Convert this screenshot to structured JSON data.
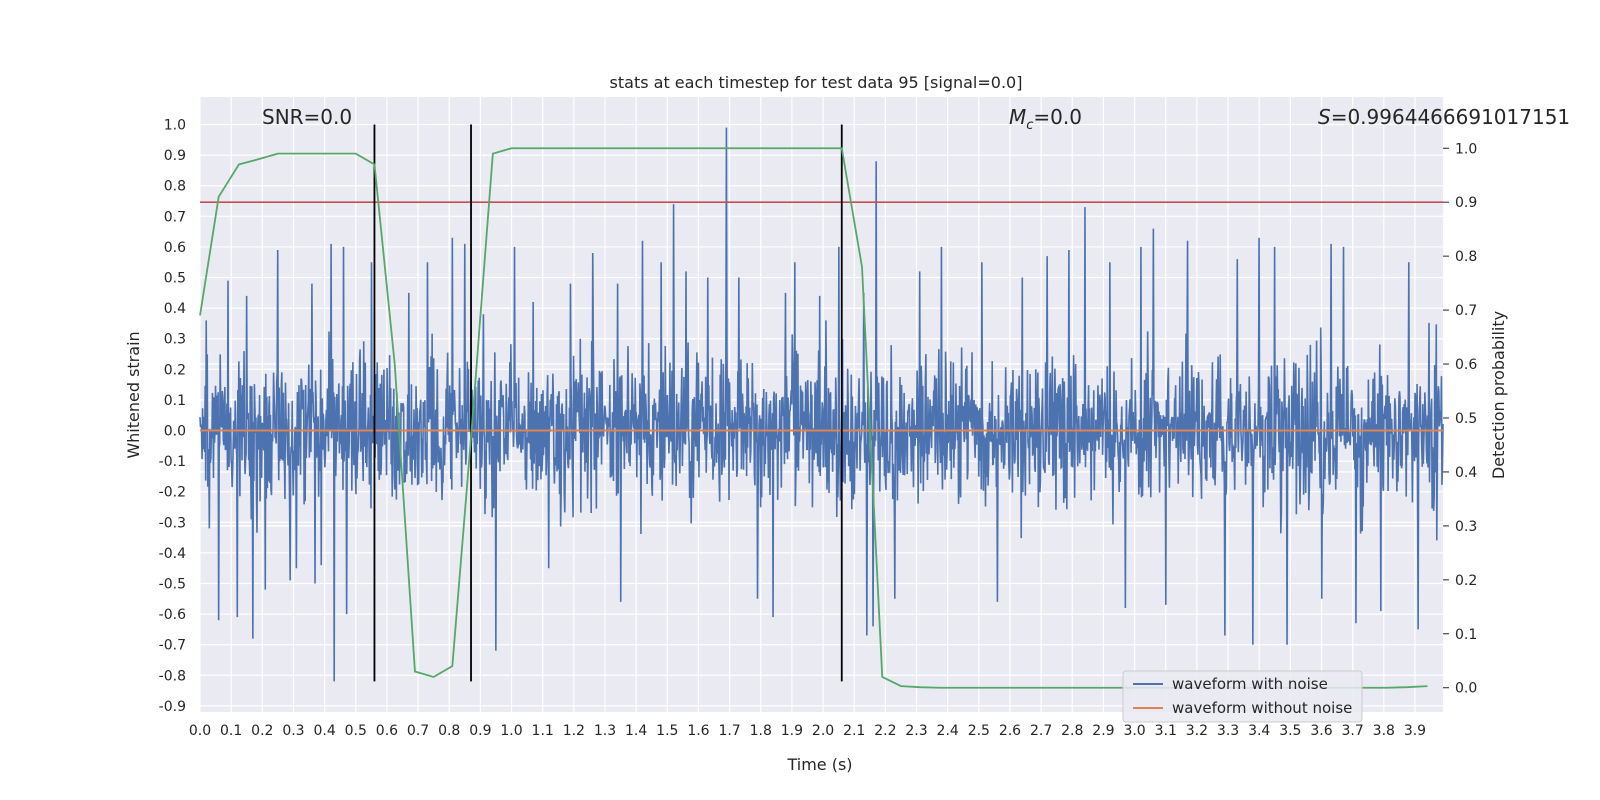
{
  "chart_data": {
    "type": "line",
    "title": "stats at each timestep for test data 95 [signal=0.0]",
    "xlabel": "Time (s)",
    "ylabel": "Whitened strain",
    "y2label": "Detection probability",
    "xlim": [
      0.0,
      3.99
    ],
    "ylim": [
      -0.92,
      1.09
    ],
    "y2lim": [
      -0.045,
      1.095
    ],
    "x_ticks": [
      "0.0",
      "0.1",
      "0.2",
      "0.3",
      "0.4",
      "0.5",
      "0.6",
      "0.7",
      "0.8",
      "0.9",
      "1.0",
      "1.1",
      "1.2",
      "1.3",
      "1.4",
      "1.5",
      "1.6",
      "1.7",
      "1.8",
      "1.9",
      "2.0",
      "2.1",
      "2.2",
      "2.3",
      "2.4",
      "2.5",
      "2.6",
      "2.7",
      "2.8",
      "2.9",
      "3.0",
      "3.1",
      "3.2",
      "3.3",
      "3.4",
      "3.5",
      "3.6",
      "3.7",
      "3.8",
      "3.9"
    ],
    "y_ticks": [
      "1.0",
      "0.9",
      "0.8",
      "0.7",
      "0.6",
      "0.5",
      "0.4",
      "0.3",
      "0.2",
      "0.1",
      "0.0",
      "-0.1",
      "-0.2",
      "-0.3",
      "-0.4",
      "-0.5",
      "-0.6",
      "-0.7",
      "-0.8",
      "-0.9"
    ],
    "y2_ticks": [
      "1.0",
      "0.9",
      "0.8",
      "0.7",
      "0.6",
      "0.5",
      "0.4",
      "0.3",
      "0.2",
      "0.1",
      "0.0"
    ],
    "grid": true,
    "legend_position": "bottom-right",
    "annotations": {
      "snr": "SNR=0.0",
      "mc_symbol": "M",
      "mc_sub": "c",
      "mc_value": "=0.0",
      "s_symbol": "S",
      "s_value": "=0.9964466691017151"
    },
    "series": [
      {
        "name": "waveform with noise",
        "color": "#4c72b0",
        "noise_amplitude": 0.3,
        "peaks": [
          [
            0.02,
            0.36
          ],
          [
            0.03,
            -0.32
          ],
          [
            0.06,
            -0.62
          ],
          [
            0.09,
            0.49
          ],
          [
            0.12,
            -0.61
          ],
          [
            0.15,
            0.44
          ],
          [
            0.17,
            -0.68
          ],
          [
            0.21,
            0.55
          ],
          [
            0.21,
            -0.52
          ],
          [
            0.25,
            0.59
          ],
          [
            0.29,
            0.57
          ],
          [
            0.29,
            -0.49
          ],
          [
            0.31,
            -0.45
          ],
          [
            0.36,
            0.48
          ],
          [
            0.37,
            -0.5
          ],
          [
            0.39,
            -0.44
          ],
          [
            0.42,
            0.61
          ],
          [
            0.43,
            -0.82
          ],
          [
            0.46,
            0.6
          ],
          [
            0.47,
            -0.6
          ],
          [
            0.55,
            0.55
          ],
          [
            0.67,
            0.45
          ],
          [
            0.73,
            0.55
          ],
          [
            0.81,
            0.63
          ],
          [
            0.85,
            0.61
          ],
          [
            0.91,
            0.38
          ],
          [
            0.95,
            -0.72
          ],
          [
            1.01,
            0.6
          ],
          [
            1.07,
            0.42
          ],
          [
            1.12,
            -0.45
          ],
          [
            1.19,
            0.48
          ],
          [
            1.26,
            0.58
          ],
          [
            1.34,
            0.48
          ],
          [
            1.35,
            -0.56
          ],
          [
            1.42,
            0.62
          ],
          [
            1.48,
            0.55
          ],
          [
            1.52,
            0.74
          ],
          [
            1.56,
            0.52
          ],
          [
            1.63,
            0.5
          ],
          [
            1.69,
            0.99
          ],
          [
            1.73,
            0.5
          ],
          [
            1.79,
            -0.55
          ],
          [
            1.84,
            -0.61
          ],
          [
            1.88,
            0.45
          ],
          [
            1.91,
            0.55
          ],
          [
            1.99,
            0.44
          ],
          [
            2.05,
            0.6
          ],
          [
            2.13,
            0.45
          ],
          [
            2.14,
            -0.67
          ],
          [
            2.16,
            -0.64
          ],
          [
            2.17,
            0.88
          ],
          [
            2.23,
            -0.55
          ],
          [
            2.31,
            0.52
          ],
          [
            2.38,
            0.6
          ],
          [
            2.51,
            0.55
          ],
          [
            2.56,
            -0.56
          ],
          [
            2.64,
            0.5
          ],
          [
            2.72,
            0.57
          ],
          [
            2.79,
            0.59
          ],
          [
            2.84,
            0.73
          ],
          [
            2.92,
            0.55
          ],
          [
            2.97,
            -0.58
          ],
          [
            3.02,
            0.6
          ],
          [
            3.06,
            0.66
          ],
          [
            3.1,
            -0.57
          ],
          [
            3.17,
            0.62
          ],
          [
            3.29,
            -0.67
          ],
          [
            3.33,
            0.56
          ],
          [
            3.38,
            -0.7
          ],
          [
            3.4,
            0.63
          ],
          [
            3.45,
            0.6
          ],
          [
            3.49,
            -0.7
          ],
          [
            3.6,
            -0.55
          ],
          [
            3.63,
            0.61
          ],
          [
            3.67,
            0.6
          ],
          [
            3.71,
            -0.63
          ],
          [
            3.79,
            -0.59
          ],
          [
            3.88,
            0.55
          ],
          [
            3.91,
            -0.65
          ]
        ]
      },
      {
        "name": "waveform without noise",
        "color": "#dd8452",
        "x": [
          0.0,
          3.99
        ],
        "values": [
          0.0,
          0.0
        ]
      },
      {
        "name": "detection probability",
        "color": "#55a868",
        "axis": "right",
        "x": [
          0.0,
          0.06,
          0.125,
          0.19,
          0.25,
          0.31,
          0.375,
          0.44,
          0.5,
          0.56,
          0.625,
          0.69,
          0.75,
          0.81,
          0.875,
          0.94,
          1.0,
          1.06,
          1.125,
          1.19,
          1.25,
          1.31,
          1.375,
          1.44,
          1.5,
          1.56,
          1.625,
          1.69,
          1.75,
          1.81,
          1.875,
          1.94,
          2.0,
          2.06,
          2.125,
          2.19,
          2.25,
          2.31,
          2.375,
          2.44,
          2.5,
          2.56,
          2.625,
          2.69,
          2.75,
          2.81,
          2.875,
          2.94,
          3.0,
          3.06,
          3.125,
          3.19,
          3.25,
          3.31,
          3.375,
          3.44,
          3.5,
          3.56,
          3.625,
          3.69,
          3.75,
          3.81,
          3.875,
          3.94
        ],
        "values": [
          0.69,
          0.91,
          0.97,
          0.98,
          0.99,
          0.99,
          0.99,
          0.99,
          0.99,
          0.97,
          0.6,
          0.03,
          0.02,
          0.04,
          0.5,
          0.99,
          1.0,
          1.0,
          1.0,
          1.0,
          1.0,
          1.0,
          1.0,
          1.0,
          1.0,
          1.0,
          1.0,
          1.0,
          1.0,
          1.0,
          1.0,
          1.0,
          1.0,
          1.0,
          0.78,
          0.02,
          0.003,
          0.001,
          0.0,
          0.0,
          0.0,
          0.0,
          0.0,
          0.0,
          0.0,
          0.0,
          0.0,
          0.0,
          0.0,
          0.0,
          0.0,
          0.0,
          0.0,
          0.0,
          0.0,
          0.0,
          0.0,
          0.0,
          0.0,
          0.0,
          0.0,
          0.0,
          0.001,
          0.003
        ]
      }
    ],
    "threshold_line": {
      "axis": "right",
      "value": 0.9,
      "color": "#c44e52"
    },
    "vertical_lines": [
      0.56,
      0.87,
      2.06
    ],
    "vertical_line_range": [
      -0.82,
      1.0
    ],
    "white_hlines_right_axis": [
      0.6,
      0.5,
      0.4,
      0.3
    ]
  }
}
